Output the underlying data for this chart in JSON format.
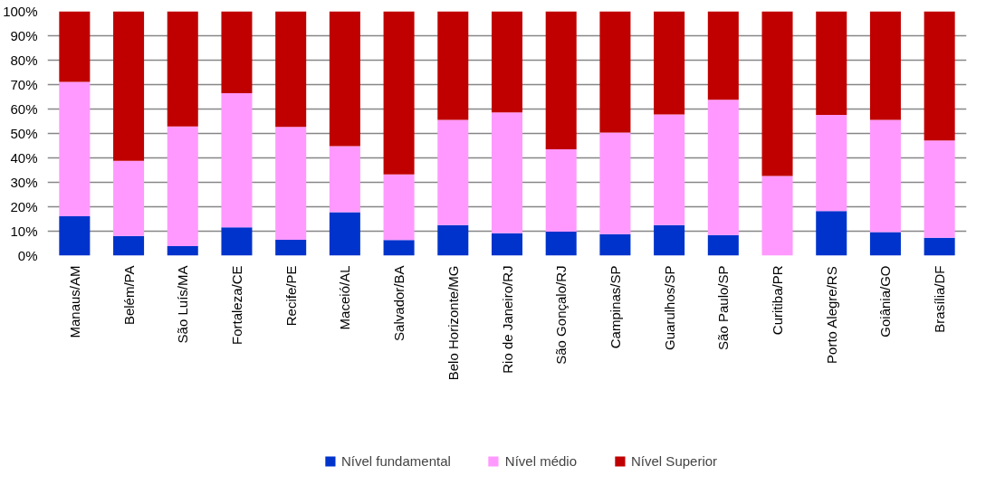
{
  "chart_data": {
    "type": "bar",
    "stacked": true,
    "categories": [
      "Manaus/AM",
      "Belém/PA",
      "São Luís/MA",
      "Fortaleza/CE",
      "Recife/PE",
      "Maceió/AL",
      "Salvador/BA",
      "Belo Horizonte/MG",
      "Rio de Janeiro/RJ",
      "São Gonçalo/RJ",
      "Campinas/SP",
      "Guarulhos/SP",
      "São Paulo/SP",
      "Curitiba/PR",
      "Porto Alegre/RS",
      "Goiânia/GO",
      "Brasília/DF"
    ],
    "series": [
      {
        "name": "Nível fundamental",
        "color": "#0033cc",
        "values": [
          16.1,
          8.1,
          3.9,
          11.6,
          6.5,
          17.8,
          6.4,
          12.5,
          9.2,
          9.8,
          8.8,
          12.5,
          8.4,
          0,
          18.2,
          9.6,
          7.3
        ]
      },
      {
        "name": "Nível médio",
        "color": "#ff99ff",
        "values": [
          55.0,
          30.7,
          49.0,
          54.9,
          46.2,
          27.0,
          26.8,
          43.1,
          49.4,
          33.7,
          41.6,
          45.3,
          55.4,
          32.6,
          39.4,
          46.0,
          39.8
        ]
      },
      {
        "name": "Nível Superior",
        "color": "#c00000",
        "values": [
          28.9,
          61.2,
          47.1,
          33.5,
          47.3,
          55.2,
          66.8,
          44.4,
          41.4,
          56.5,
          49.6,
          42.2,
          36.2,
          67.4,
          42.4,
          44.4,
          52.9
        ]
      }
    ],
    "ylim": [
      0,
      100
    ],
    "yticks": [
      {
        "value": 0,
        "label": "0%"
      },
      {
        "value": 10,
        "label": "10%"
      },
      {
        "value": 20,
        "label": "20%"
      },
      {
        "value": 30,
        "label": "30%"
      },
      {
        "value": 40,
        "label": "40%"
      },
      {
        "value": 50,
        "label": "50%"
      },
      {
        "value": 60,
        "label": "60%"
      },
      {
        "value": 70,
        "label": "70%"
      },
      {
        "value": 80,
        "label": "80%"
      },
      {
        "value": 90,
        "label": "90%"
      },
      {
        "value": 100,
        "label": "100%"
      }
    ],
    "grid": "y",
    "legend": "bottom"
  }
}
